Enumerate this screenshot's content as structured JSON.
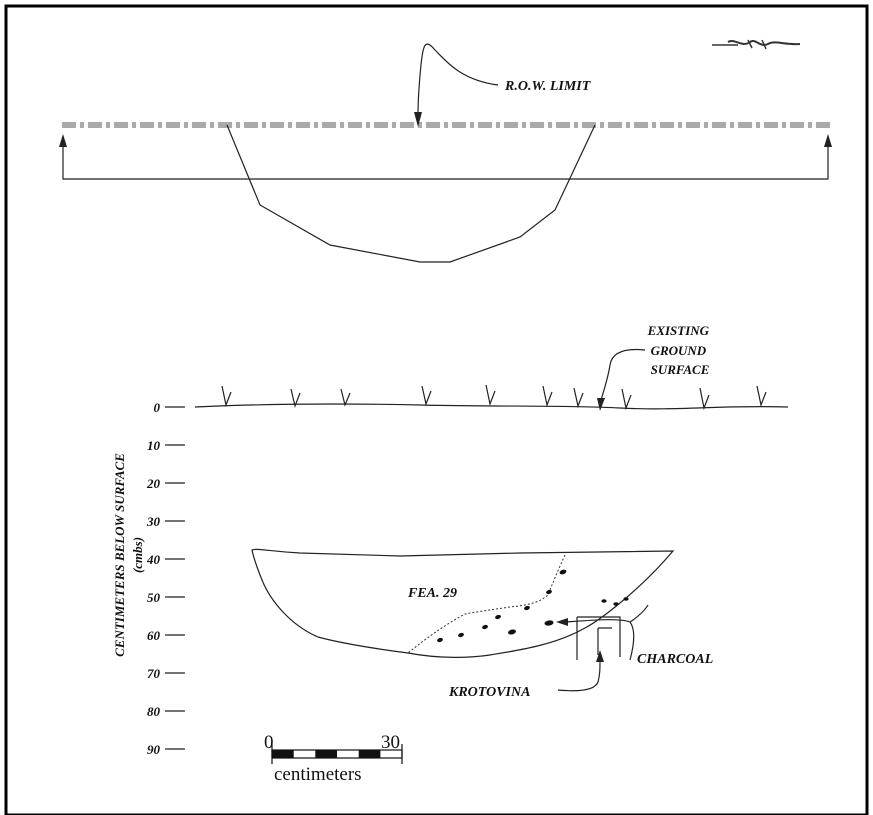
{
  "plan_view": {
    "row_limit_label": "R.O.W. LIMIT"
  },
  "profile": {
    "ground_label_lines": [
      "EXISTING",
      "GROUND",
      "SURFACE"
    ],
    "feature_label": "FEA. 29",
    "charcoal_label": "CHARCOAL",
    "krotovina_label": "KROTOVINA",
    "axis_title": "CENTIMETERS BELOW SURFACE",
    "axis_subtitle": "(cmbs)",
    "depth_ticks": [
      "0",
      "10",
      "20",
      "30",
      "40",
      "50",
      "60",
      "70",
      "80",
      "90"
    ]
  },
  "scale_bar": {
    "start_label": "0",
    "end_label": "30",
    "unit_label": "centimeters"
  }
}
